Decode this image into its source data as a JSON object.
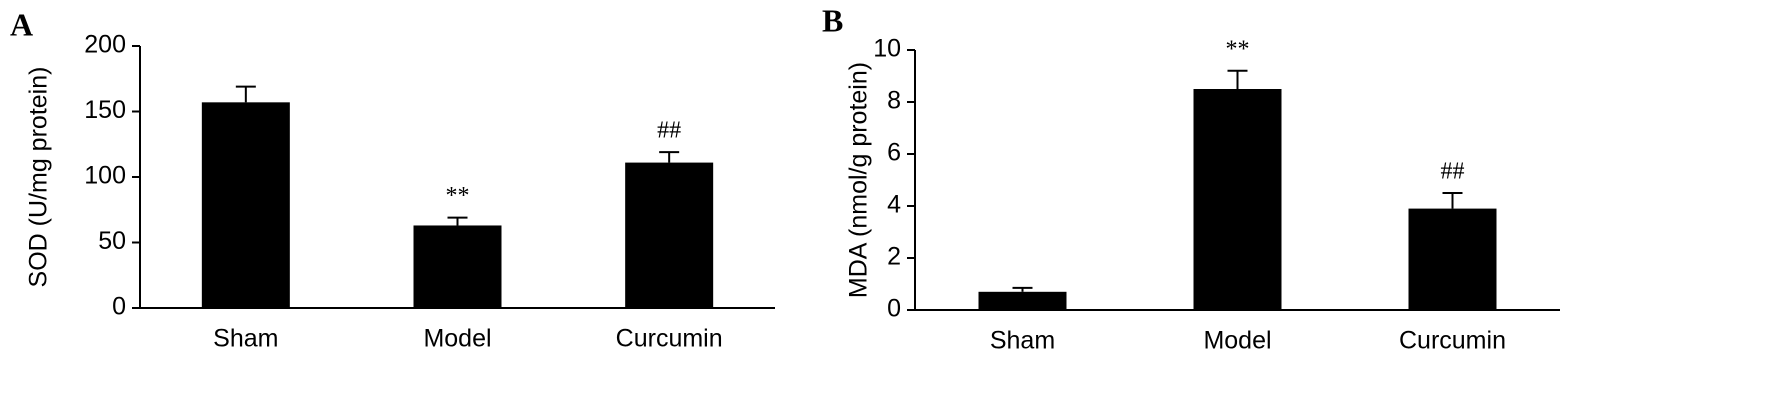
{
  "chart_data": [
    {
      "type": "bar",
      "panel_label": "A",
      "y_label": "SOD (U/mg protein)",
      "categories": [
        "Sham",
        "Model",
        "Curcumin"
      ],
      "values": [
        157,
        63,
        111
      ],
      "errors": [
        12,
        6,
        8
      ],
      "bar_annotations": [
        null,
        "**",
        "##"
      ],
      "color": "#000000",
      "ylim": [
        0,
        200
      ],
      "yticks": [
        0,
        50,
        100,
        150,
        200
      ]
    },
    {
      "type": "bar",
      "panel_label": "B",
      "y_label": "MDA (nmol/g protein)",
      "categories": [
        "Sham",
        "Model",
        "Curcumin"
      ],
      "values": [
        0.7,
        8.5,
        3.9
      ],
      "errors": [
        0.15,
        0.7,
        0.6
      ],
      "bar_annotations": [
        null,
        "**",
        "##"
      ],
      "color": "#000000",
      "ylim": [
        0,
        10
      ],
      "yticks": [
        0,
        2,
        4,
        6,
        8,
        10
      ]
    }
  ]
}
